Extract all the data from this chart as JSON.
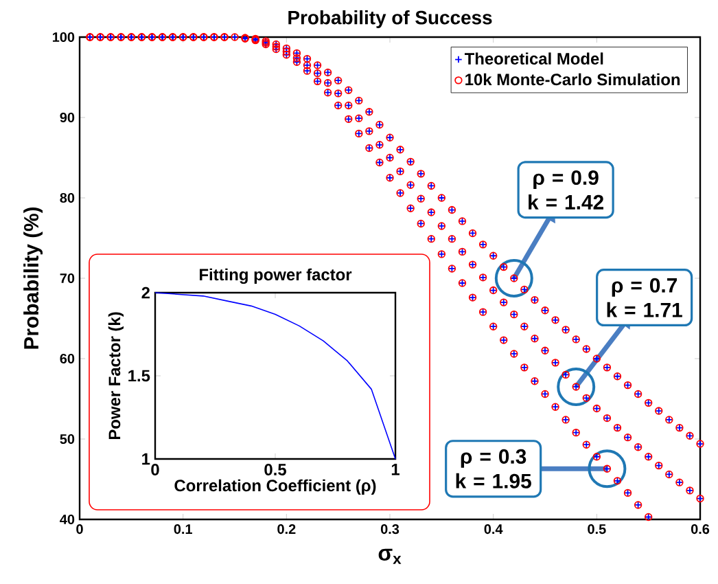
{
  "chart_data": [
    {
      "type": "scatter",
      "title": "Probability of Success",
      "xlabel": "σ$_{x}$",
      "ylabel": "Probability (%)",
      "xlim": [
        0,
        0.6
      ],
      "ylim": [
        40,
        100
      ],
      "xticks": [
        0,
        0.1,
        0.2,
        0.3,
        0.4,
        0.5,
        0.6
      ],
      "yticks": [
        40,
        50,
        60,
        70,
        80,
        90,
        100
      ],
      "legend": "top right",
      "series": [
        {
          "name": "Theoretical Model",
          "color": "#0000ff",
          "marker": "cross",
          "x": [
            0.01,
            0.02,
            0.03,
            0.04,
            0.05,
            0.06,
            0.07,
            0.08,
            0.09,
            0.1,
            0.11,
            0.12,
            0.13,
            0.14,
            0.15,
            0.16,
            0.17,
            0.18,
            0.19,
            0.2,
            0.21,
            0.22,
            0.23,
            0.24,
            0.25,
            0.26,
            0.27,
            0.28,
            0.29,
            0.3,
            0.31,
            0.32,
            0.33,
            0.34,
            0.35,
            0.36,
            0.37,
            0.38,
            0.39,
            0.4,
            0.41,
            0.42,
            0.43,
            0.44,
            0.45,
            0.46,
            0.47,
            0.48,
            0.49,
            0.5,
            0.51,
            0.52,
            0.53,
            0.54,
            0.55,
            0.56,
            0.57,
            0.58,
            0.59,
            0.6,
            0.01,
            0.02,
            0.03,
            0.04,
            0.05,
            0.06,
            0.07,
            0.08,
            0.09,
            0.1,
            0.11,
            0.12,
            0.13,
            0.14,
            0.16,
            0.17,
            0.18,
            0.19,
            0.2,
            0.21,
            0.22,
            0.23,
            0.24,
            0.25,
            0.26,
            0.27,
            0.28,
            0.29,
            0.3,
            0.31,
            0.32,
            0.33,
            0.34,
            0.35,
            0.36,
            0.37,
            0.38,
            0.39,
            0.4,
            0.41,
            0.42,
            0.43,
            0.44,
            0.45,
            0.46,
            0.47,
            0.48,
            0.49,
            0.5,
            0.51,
            0.52,
            0.53,
            0.54,
            0.55,
            0.56,
            0.57,
            0.58,
            0.59,
            0.6,
            0.01,
            0.02,
            0.03,
            0.04,
            0.05,
            0.06,
            0.07,
            0.08,
            0.09,
            0.1,
            0.11,
            0.12,
            0.13,
            0.14,
            0.16,
            0.17,
            0.18,
            0.19,
            0.2,
            0.21,
            0.22,
            0.23,
            0.24,
            0.25,
            0.26,
            0.27,
            0.28,
            0.29,
            0.3,
            0.31,
            0.32,
            0.33,
            0.34,
            0.35,
            0.36,
            0.37,
            0.38,
            0.39,
            0.4,
            0.41,
            0.42,
            0.43,
            0.44,
            0.45,
            0.46,
            0.47,
            0.48,
            0.49,
            0.5,
            0.51,
            0.52,
            0.53,
            0.54,
            0.55
          ],
          "values": [
            100,
            100,
            100,
            100,
            100,
            100,
            100,
            100,
            100,
            100,
            100,
            100,
            100,
            100,
            100,
            99.9,
            99.8,
            99.5,
            99.1,
            98.6,
            98.0,
            97.3,
            96.5,
            95.6,
            94.6,
            93.4,
            92.1,
            90.7,
            89.1,
            87.5,
            86.0,
            84.5,
            83.0,
            81.5,
            80.0,
            78.5,
            77.1,
            75.6,
            74.2,
            72.8,
            71.4,
            70.0,
            68.6,
            67.3,
            66.0,
            64.8,
            63.6,
            62.4,
            61.2,
            60.0,
            58.9,
            57.8,
            56.7,
            55.6,
            54.5,
            53.5,
            52.4,
            51.4,
            50.4,
            49.4,
            100,
            100,
            100,
            100,
            100,
            100,
            100,
            100,
            100,
            100,
            100,
            100,
            100,
            100,
            99.9,
            99.7,
            99.3,
            98.8,
            98.2,
            97.4,
            96.5,
            95.5,
            94.3,
            93.0,
            91.5,
            89.9,
            88.3,
            86.6,
            85.0,
            83.3,
            81.6,
            79.9,
            78.2,
            76.5,
            74.9,
            73.3,
            71.7,
            70.1,
            68.5,
            67.0,
            65.5,
            64.0,
            62.5,
            61.0,
            59.5,
            58.0,
            56.5,
            55.1,
            53.8,
            52.6,
            51.4,
            50.2,
            49.0,
            47.8,
            46.7,
            45.6,
            44.6,
            43.6,
            42.6,
            100,
            100,
            100,
            100,
            100,
            100,
            100,
            100,
            100,
            100,
            100,
            100,
            100,
            100,
            99.8,
            99.6,
            99.1,
            98.5,
            97.8,
            96.9,
            95.8,
            94.5,
            93.1,
            91.5,
            89.8,
            88.0,
            86.2,
            84.4,
            82.5,
            80.6,
            78.7,
            76.8,
            74.9,
            73.0,
            71.2,
            69.4,
            67.6,
            65.8,
            64.0,
            62.3,
            60.6,
            58.9,
            57.2,
            55.6,
            54.0,
            52.4,
            50.8,
            49.3,
            47.8,
            46.3,
            44.8,
            43.3,
            41.8,
            40.3
          ]
        },
        {
          "name": "10k Monte-Carlo Simulation",
          "color": "#ff0000",
          "marker": "circle",
          "x": [
            0.01,
            0.02,
            0.03,
            0.04,
            0.05,
            0.06,
            0.07,
            0.08,
            0.09,
            0.1,
            0.11,
            0.12,
            0.13,
            0.14,
            0.15,
            0.16,
            0.17,
            0.18,
            0.19,
            0.2,
            0.21,
            0.22,
            0.23,
            0.24,
            0.25,
            0.26,
            0.27,
            0.28,
            0.29,
            0.3,
            0.31,
            0.32,
            0.33,
            0.34,
            0.35,
            0.36,
            0.37,
            0.38,
            0.39,
            0.4,
            0.41,
            0.42,
            0.43,
            0.44,
            0.45,
            0.46,
            0.47,
            0.48,
            0.49,
            0.5,
            0.51,
            0.52,
            0.53,
            0.54,
            0.55,
            0.56,
            0.57,
            0.58,
            0.59,
            0.6,
            0.01,
            0.02,
            0.03,
            0.04,
            0.05,
            0.06,
            0.07,
            0.08,
            0.09,
            0.1,
            0.11,
            0.12,
            0.13,
            0.14,
            0.16,
            0.17,
            0.18,
            0.19,
            0.2,
            0.21,
            0.22,
            0.23,
            0.24,
            0.25,
            0.26,
            0.27,
            0.28,
            0.29,
            0.3,
            0.31,
            0.32,
            0.33,
            0.34,
            0.35,
            0.36,
            0.37,
            0.38,
            0.39,
            0.4,
            0.41,
            0.42,
            0.43,
            0.44,
            0.45,
            0.46,
            0.47,
            0.48,
            0.49,
            0.5,
            0.51,
            0.52,
            0.53,
            0.54,
            0.55,
            0.56,
            0.57,
            0.58,
            0.59,
            0.6,
            0.01,
            0.02,
            0.03,
            0.04,
            0.05,
            0.06,
            0.07,
            0.08,
            0.09,
            0.1,
            0.11,
            0.12,
            0.13,
            0.14,
            0.16,
            0.17,
            0.18,
            0.19,
            0.2,
            0.21,
            0.22,
            0.23,
            0.24,
            0.25,
            0.26,
            0.27,
            0.28,
            0.29,
            0.3,
            0.31,
            0.32,
            0.33,
            0.34,
            0.35,
            0.36,
            0.37,
            0.38,
            0.39,
            0.4,
            0.41,
            0.42,
            0.43,
            0.44,
            0.45,
            0.46,
            0.47,
            0.48,
            0.49,
            0.5,
            0.51,
            0.52,
            0.53,
            0.54,
            0.55
          ],
          "values": [
            100,
            100,
            100,
            100,
            100,
            100,
            100,
            100,
            100,
            100,
            100,
            100,
            100,
            100,
            100,
            99.9,
            99.8,
            99.5,
            99.1,
            98.6,
            98.0,
            97.3,
            96.5,
            95.6,
            94.6,
            93.4,
            92.1,
            90.7,
            89.1,
            87.5,
            86.0,
            84.5,
            83.0,
            81.5,
            80.0,
            78.5,
            77.1,
            75.6,
            74.2,
            72.8,
            71.4,
            70.0,
            68.6,
            67.3,
            66.0,
            64.8,
            63.6,
            62.4,
            61.2,
            60.0,
            58.9,
            57.8,
            56.7,
            55.6,
            54.5,
            53.5,
            52.4,
            51.4,
            50.4,
            49.4,
            100,
            100,
            100,
            100,
            100,
            100,
            100,
            100,
            100,
            100,
            100,
            100,
            100,
            100,
            99.9,
            99.7,
            99.3,
            98.8,
            98.2,
            97.4,
            96.5,
            95.5,
            94.3,
            93.0,
            91.5,
            89.9,
            88.3,
            86.6,
            85.0,
            83.3,
            81.6,
            79.9,
            78.2,
            76.5,
            74.9,
            73.3,
            71.7,
            70.1,
            68.5,
            67.0,
            65.5,
            64.0,
            62.5,
            61.0,
            59.5,
            58.0,
            56.5,
            55.1,
            53.8,
            52.6,
            51.4,
            50.2,
            49.0,
            47.8,
            46.7,
            45.6,
            44.6,
            43.6,
            42.6,
            100,
            100,
            100,
            100,
            100,
            100,
            100,
            100,
            100,
            100,
            100,
            100,
            100,
            100,
            99.8,
            99.6,
            99.1,
            98.5,
            97.8,
            96.9,
            95.8,
            94.5,
            93.1,
            91.5,
            89.8,
            88.0,
            86.2,
            84.4,
            82.5,
            80.6,
            78.7,
            76.8,
            74.9,
            73.0,
            71.2,
            69.4,
            67.6,
            65.8,
            64.0,
            62.3,
            60.6,
            58.9,
            57.2,
            55.6,
            54.0,
            52.4,
            50.8,
            49.3,
            47.8,
            46.3,
            44.8,
            43.3,
            41.8,
            40.3
          ]
        }
      ],
      "annotations": [
        {
          "text": "ρ = 0.9 k = 1.42",
          "x": 0.42,
          "y": 70.0
        },
        {
          "text": "ρ = 0.7 k = 1.71",
          "x": 0.48,
          "y": 56.5
        },
        {
          "text": "ρ = 0.3 k = 1.95",
          "x": 0.51,
          "y": 46.3
        }
      ]
    },
    {
      "type": "line",
      "title": "Fitting power factor",
      "xlabel": "Correlation Coefficient (ρ)",
      "ylabel": "Power Factor (k)",
      "xlim": [
        0,
        1
      ],
      "ylim": [
        1,
        2
      ],
      "xticks": [
        0,
        0.5,
        1
      ],
      "yticks": [
        1,
        1.5,
        2
      ],
      "color": "#0000ff",
      "x": [
        0,
        0.1,
        0.2,
        0.3,
        0.4,
        0.5,
        0.6,
        0.7,
        0.8,
        0.9,
        1
      ],
      "values": [
        2,
        1.99,
        1.98,
        1.95,
        1.92,
        1.87,
        1.8,
        1.71,
        1.59,
        1.42,
        1.0
      ]
    }
  ]
}
